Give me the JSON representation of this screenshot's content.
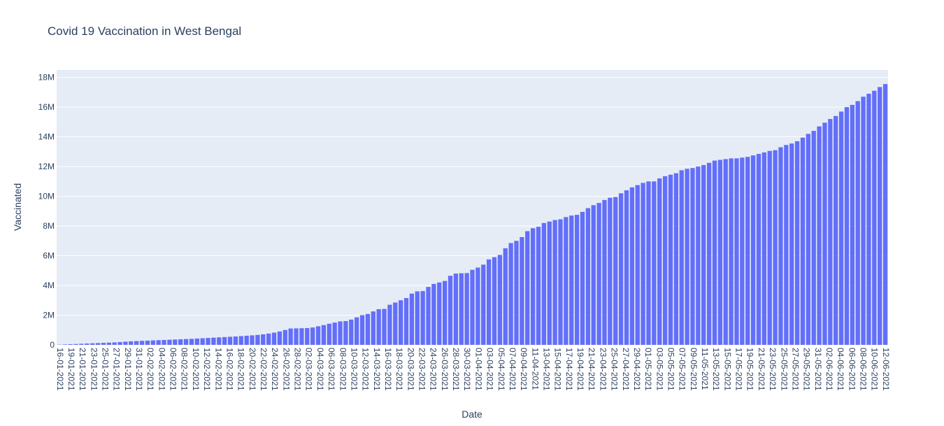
{
  "chart_data": {
    "type": "bar",
    "title": "Covid 19 Vaccination in West Bengal",
    "xlabel": "Date",
    "ylabel": "Vaccinated",
    "ylim": [
      0,
      18500000
    ],
    "ytick_values": [
      0,
      2000000,
      4000000,
      6000000,
      8000000,
      10000000,
      12000000,
      14000000,
      16000000,
      18000000
    ],
    "ytick_labels": [
      "0",
      "2M",
      "4M",
      "6M",
      "8M",
      "10M",
      "12M",
      "14M",
      "16M",
      "18M"
    ],
    "xtick_labels": [
      "16-01-2021",
      "19-01-2021",
      "21-01-2021",
      "23-01-2021",
      "25-01-2021",
      "27-01-2021",
      "29-01-2021",
      "31-01-2021",
      "02-02-2021",
      "04-02-2021",
      "06-02-2021",
      "08-02-2021",
      "10-02-2021",
      "12-02-2021",
      "14-02-2021",
      "16-02-2021",
      "18-02-2021",
      "20-02-2021",
      "22-02-2021",
      "24-02-2021",
      "26-02-2021",
      "28-02-2021",
      "02-03-2021",
      "04-03-2021",
      "06-03-2021",
      "08-03-2021",
      "10-03-2021",
      "12-03-2021",
      "14-03-2021",
      "16-03-2021",
      "18-03-2021",
      "20-03-2021",
      "22-03-2021",
      "24-03-2021",
      "26-03-2021",
      "28-03-2021",
      "30-03-2021",
      "01-04-2021",
      "03-04-2021",
      "05-04-2021",
      "07-04-2021",
      "09-04-2021",
      "11-04-2021",
      "13-04-2021",
      "15-04-2021",
      "17-04-2021",
      "19-04-2021",
      "21-04-2021",
      "23-04-2021",
      "25-04-2021",
      "27-04-2021",
      "29-04-2021",
      "01-05-2021",
      "03-05-2021",
      "05-05-2021",
      "07-05-2021",
      "09-05-2021",
      "11-05-2021",
      "13-05-2021",
      "15-05-2021",
      "17-05-2021",
      "19-05-2021",
      "21-05-2021",
      "23-05-2021",
      "25-05-2021",
      "27-05-2021",
      "29-05-2021",
      "31-05-2021",
      "02-06-2021",
      "04-06-2021",
      "06-06-2021",
      "08-06-2021",
      "10-06-2021",
      "12-06-2021"
    ],
    "values": [
      15000,
      30000,
      45000,
      60000,
      75000,
      90000,
      105000,
      120000,
      135000,
      150000,
      165000,
      190000,
      215000,
      240000,
      255000,
      270000,
      285000,
      300000,
      315000,
      330000,
      345000,
      360000,
      375000,
      390000,
      405000,
      425000,
      445000,
      465000,
      485000,
      505000,
      525000,
      545000,
      565000,
      590000,
      615000,
      640000,
      670000,
      710000,
      760000,
      820000,
      900000,
      1000000,
      1100000,
      1110000,
      1120000,
      1130000,
      1170000,
      1250000,
      1330000,
      1420000,
      1500000,
      1580000,
      1600000,
      1700000,
      1850000,
      2000000,
      2080000,
      2250000,
      2400000,
      2420000,
      2700000,
      2850000,
      3000000,
      3150000,
      3450000,
      3600000,
      3620000,
      3900000,
      4100000,
      4200000,
      4300000,
      4650000,
      4800000,
      4820000,
      4830000,
      5050000,
      5200000,
      5400000,
      5750000,
      5900000,
      6050000,
      6500000,
      6850000,
      7000000,
      7250000,
      7650000,
      7850000,
      7950000,
      8200000,
      8300000,
      8400000,
      8450000,
      8600000,
      8700000,
      8750000,
      8950000,
      9200000,
      9400000,
      9550000,
      9750000,
      9900000,
      9950000,
      10200000,
      10400000,
      10600000,
      10750000,
      10900000,
      11000000,
      11000000,
      11200000,
      11350000,
      11450000,
      11550000,
      11750000,
      11850000,
      11900000,
      12000000,
      12100000,
      12250000,
      12400000,
      12450000,
      12500000,
      12550000,
      12550000,
      12600000,
      12650000,
      12750000,
      12850000,
      12950000,
      13050000,
      13100000,
      13300000,
      13450000,
      13550000,
      13700000,
      13950000,
      14200000,
      14400000,
      14700000,
      14950000,
      15200000,
      15400000,
      15700000,
      16000000,
      16150000,
      16400000,
      16700000,
      16900000,
      17100000,
      17350000,
      17550000
    ],
    "bar_color": "#636efa",
    "plot_bg": "#e5ecf6",
    "grid": true
  }
}
